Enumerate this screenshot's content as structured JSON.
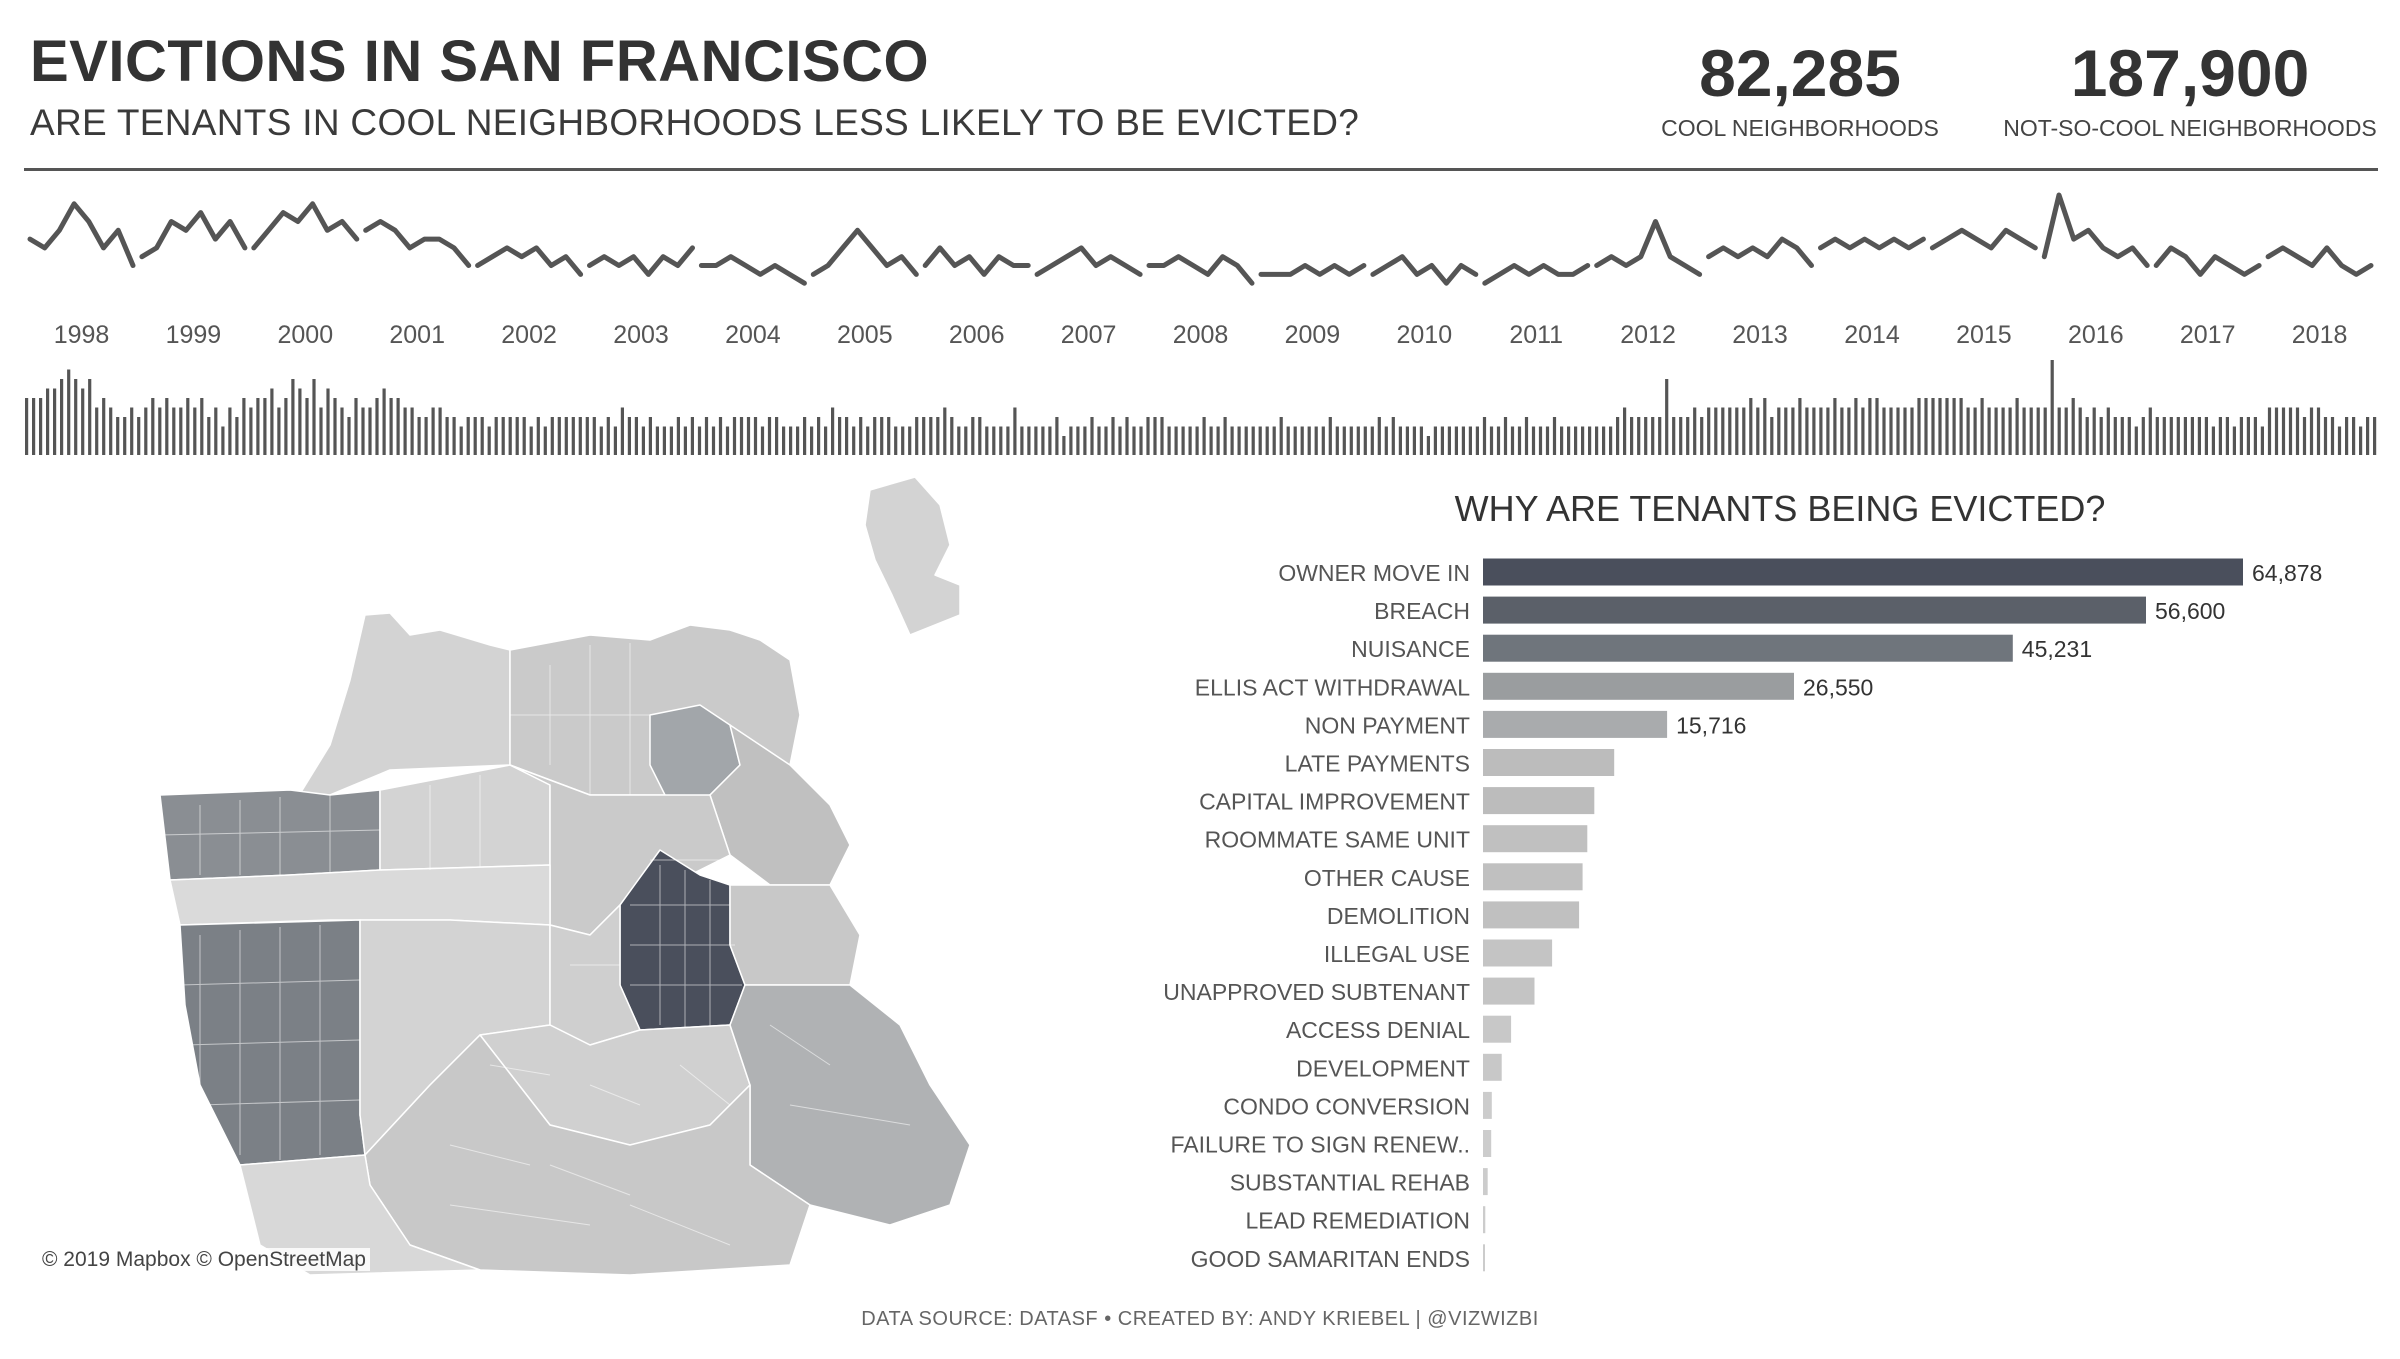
{
  "header": {
    "title": "EVICTIONS IN SAN FRANCISCO",
    "subtitle": "ARE TENANTS IN COOL NEIGHBORHOODS LESS LIKELY TO BE EVICTED?"
  },
  "kpis": [
    {
      "value": "82,285",
      "label": "COOL NEIGHBORHOODS"
    },
    {
      "value": "187,900",
      "label": "NOT-SO-COOL NEIGHBORHOODS"
    }
  ],
  "map": {
    "credit": "© 2019 Mapbox © OpenStreetMap",
    "colors": {
      "cool_dark": "#4a4f5c",
      "cool_mid": "#7b8086",
      "cool_light": "#a2a6aa",
      "default": "#d3d3d3",
      "default_alt": "#c6c6c6",
      "border": "#ffffff"
    }
  },
  "footer": {
    "text": "DATA SOURCE: DATASF  •  CREATED BY: ANDY KRIEBEL | @VIZWIZBI"
  },
  "chart_data": [
    {
      "type": "line",
      "x_axis_labels": [
        "1998",
        "1999",
        "2000",
        "2001",
        "2002",
        "2003",
        "2004",
        "2005",
        "2006",
        "2007",
        "2008",
        "2009",
        "2010",
        "2011",
        "2012",
        "2013",
        "2014",
        "2015",
        "2016",
        "2017",
        "2018"
      ],
      "color": "#555555",
      "series": [
        {
          "values": [
            [
              6,
              5,
              7,
              10,
              8,
              5,
              7,
              3
            ],
            [
              4,
              5,
              8,
              7,
              9,
              6,
              8,
              5
            ],
            [
              5,
              7,
              9,
              8,
              10,
              7,
              8,
              6
            ],
            [
              7,
              8,
              7,
              5,
              6,
              6,
              5,
              3
            ],
            [
              3,
              4,
              5,
              4,
              5,
              3,
              4,
              2
            ],
            [
              3,
              4,
              3,
              4,
              2,
              4,
              3,
              5
            ],
            [
              3,
              3,
              4,
              3,
              2,
              3,
              2,
              1
            ],
            [
              2,
              3,
              5,
              7,
              5,
              3,
              4,
              2
            ],
            [
              3,
              5,
              3,
              4,
              2,
              4,
              3,
              3
            ],
            [
              2,
              3,
              4,
              5,
              3,
              4,
              3,
              2
            ],
            [
              3,
              3,
              4,
              3,
              2,
              4,
              3,
              1
            ],
            [
              2,
              2,
              2,
              3,
              2,
              3,
              2,
              3
            ],
            [
              2,
              3,
              4,
              2,
              3,
              1,
              3,
              2
            ],
            [
              1,
              2,
              3,
              2,
              3,
              2,
              2,
              3
            ],
            [
              3,
              4,
              3,
              4,
              8,
              4,
              3,
              2
            ],
            [
              4,
              5,
              4,
              5,
              4,
              6,
              5,
              3
            ],
            [
              5,
              6,
              5,
              6,
              5,
              6,
              5,
              6
            ],
            [
              5,
              6,
              7,
              6,
              5,
              7,
              6,
              5
            ],
            [
              4,
              11,
              6,
              7,
              5,
              4,
              5,
              3
            ],
            [
              3,
              5,
              4,
              2,
              4,
              3,
              2,
              3
            ],
            [
              4,
              5,
              4,
              3,
              5,
              3,
              2,
              3
            ]
          ]
        }
      ]
    },
    {
      "type": "bar",
      "orientation": "vertical",
      "color": "#555555",
      "values": [
        6,
        6,
        6,
        7,
        7,
        8,
        9,
        8,
        7,
        8,
        5,
        6,
        5,
        4,
        4,
        5,
        4,
        5,
        6,
        5,
        6,
        5,
        5,
        6,
        5,
        6,
        4,
        5,
        3,
        5,
        4,
        6,
        5,
        6,
        6,
        7,
        5,
        6,
        8,
        7,
        6,
        8,
        5,
        7,
        6,
        5,
        4,
        6,
        5,
        5,
        6,
        7,
        6,
        6,
        5,
        5,
        4,
        4,
        5,
        5,
        4,
        4,
        3,
        4,
        4,
        4,
        3,
        4,
        4,
        4,
        4,
        4,
        3,
        4,
        3,
        4,
        4,
        4,
        4,
        4,
        4,
        4,
        3,
        4,
        3,
        5,
        4,
        4,
        3,
        4,
        3,
        3,
        3,
        4,
        3,
        4,
        3,
        4,
        3,
        4,
        3,
        4,
        4,
        4,
        4,
        3,
        4,
        4,
        3,
        3,
        3,
        4,
        3,
        4,
        3,
        5,
        4,
        4,
        3,
        4,
        3,
        4,
        4,
        4,
        3,
        3,
        3,
        4,
        4,
        4,
        4,
        5,
        4,
        3,
        3,
        4,
        4,
        3,
        3,
        3,
        3,
        5,
        3,
        3,
        3,
        3,
        3,
        4,
        2,
        3,
        3,
        3,
        4,
        3,
        3,
        4,
        3,
        4,
        3,
        3,
        4,
        4,
        4,
        3,
        3,
        3,
        3,
        3,
        4,
        3,
        3,
        4,
        3,
        3,
        3,
        3,
        3,
        3,
        3,
        4,
        3,
        3,
        3,
        3,
        3,
        3,
        4,
        3,
        3,
        3,
        3,
        3,
        3,
        4,
        3,
        4,
        3,
        3,
        3,
        3,
        2,
        3,
        3,
        3,
        3,
        3,
        3,
        3,
        4,
        3,
        3,
        4,
        3,
        3,
        4,
        3,
        3,
        3,
        4,
        3,
        3,
        3,
        3,
        3,
        3,
        3,
        3,
        4,
        5,
        4,
        4,
        4,
        4,
        4,
        8,
        4,
        4,
        4,
        5,
        4,
        5,
        5,
        5,
        5,
        5,
        5,
        6,
        5,
        6,
        4,
        5,
        5,
        5,
        6,
        5,
        5,
        5,
        5,
        6,
        5,
        5,
        6,
        5,
        6,
        6,
        5,
        5,
        5,
        5,
        5,
        6,
        6,
        6,
        6,
        6,
        6,
        6,
        5,
        5,
        6,
        5,
        5,
        5,
        5,
        6,
        5,
        5,
        5,
        5,
        10,
        5,
        5,
        6,
        5,
        4,
        5,
        4,
        5,
        4,
        4,
        4,
        3,
        4,
        5,
        4,
        4,
        4,
        4,
        4,
        4,
        4,
        4,
        3,
        4,
        4,
        3,
        4,
        4,
        4,
        3,
        5,
        5,
        5,
        5,
        5,
        4,
        5,
        5,
        4,
        4,
        3,
        4,
        4,
        3,
        4,
        4
      ]
    },
    {
      "type": "bar",
      "orientation": "horizontal",
      "title": "WHY ARE TENANTS BEING EVICTED?",
      "categories": [
        "OWNER MOVE IN",
        "BREACH",
        "NUISANCE",
        "ELLIS ACT WITHDRAWAL",
        "NON PAYMENT",
        "LATE PAYMENTS",
        "CAPITAL IMPROVEMENT",
        "ROOMMATE SAME UNIT",
        "OTHER CAUSE",
        "DEMOLITION",
        "ILLEGAL USE",
        "UNAPPROVED SUBTENANT",
        "ACCESS DENIAL",
        "DEVELOPMENT",
        "CONDO CONVERSION",
        "FAILURE TO SIGN RENEW..",
        "SUBSTANTIAL REHAB",
        "LEAD REMEDIATION",
        "GOOD SAMARITAN ENDS"
      ],
      "values": [
        64878,
        56600,
        45231,
        26550,
        15716,
        11200,
        9500,
        8900,
        8500,
        8200,
        5900,
        4400,
        2400,
        1600,
        750,
        700,
        400,
        200,
        100
      ],
      "data_labels": [
        "64,878",
        "56,600",
        "45,231",
        "26,550",
        "15,716",
        "",
        "",
        "",
        "",
        "",
        "",
        "",
        "",
        "",
        "",
        "",
        "",
        "",
        ""
      ],
      "colors": [
        "#4a4f5c",
        "#5b6069",
        "#6f757c",
        "#9a9d9f",
        "#a9abad",
        "#bcbcbc",
        "#bcbcbc",
        "#c0c0c0",
        "#c0c0c0",
        "#c0c0c0",
        "#c4c4c4",
        "#c4c4c4",
        "#c8c8c8",
        "#c8c8c8",
        "#cccccc",
        "#cccccc",
        "#cccccc",
        "#cccccc",
        "#cccccc"
      ]
    }
  ]
}
